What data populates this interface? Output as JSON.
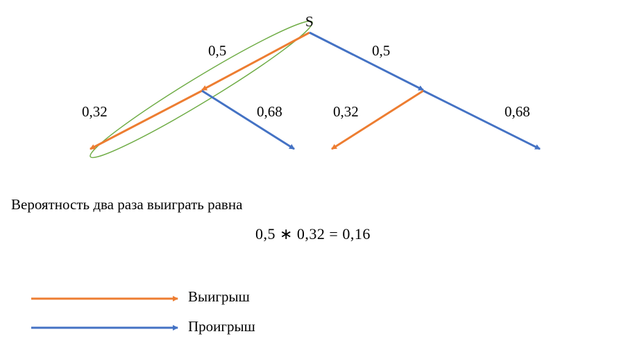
{
  "colors": {
    "win": "#ED7D31",
    "lose": "#4472C4",
    "highlight": "#70AD47"
  },
  "tree": {
    "root_label": "S",
    "level1": {
      "left_prob": "0,5",
      "right_prob": "0,5"
    },
    "level2_left": {
      "left_prob": "0,32",
      "right_prob": "0,68"
    },
    "level2_right": {
      "left_prob": "0,32",
      "right_prob": "0,68"
    }
  },
  "text": {
    "sentence": "Вероятность два раза выиграть равна",
    "formula": "0,5 ∗ 0,32 = 0,16"
  },
  "legend": [
    {
      "label": "Выигрыш",
      "color_key": "win"
    },
    {
      "label": "Проигрыш",
      "color_key": "lose"
    }
  ]
}
